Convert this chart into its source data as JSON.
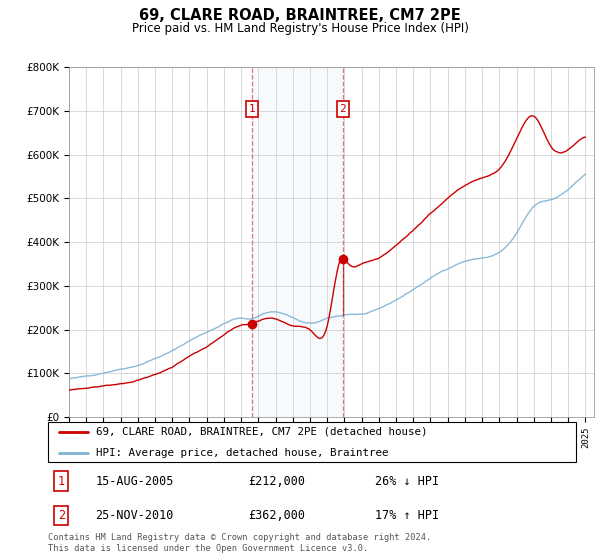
{
  "title": "69, CLARE ROAD, BRAINTREE, CM7 2PE",
  "subtitle": "Price paid vs. HM Land Registry's House Price Index (HPI)",
  "legend_label_red": "69, CLARE ROAD, BRAINTREE, CM7 2PE (detached house)",
  "legend_label_blue": "HPI: Average price, detached house, Braintree",
  "footnote": "Contains HM Land Registry data © Crown copyright and database right 2024.\nThis data is licensed under the Open Government Licence v3.0.",
  "sale1_label": "1",
  "sale1_date": "15-AUG-2005",
  "sale1_price": "£212,000",
  "sale1_hpi": "26% ↓ HPI",
  "sale2_label": "2",
  "sale2_date": "25-NOV-2010",
  "sale2_price": "£362,000",
  "sale2_hpi": "17% ↑ HPI",
  "sale1_year": 2005.625,
  "sale2_year": 2010.9,
  "sale1_price_val": 212000,
  "sale2_price_val": 362000,
  "red_color": "#cc0000",
  "blue_color": "#7fb3d3",
  "shade_color": "#ddeeff",
  "marker_box_color": "#cc0000",
  "ylim": [
    0,
    800000
  ],
  "xlim_start": 1995.0,
  "xlim_end": 2025.5
}
